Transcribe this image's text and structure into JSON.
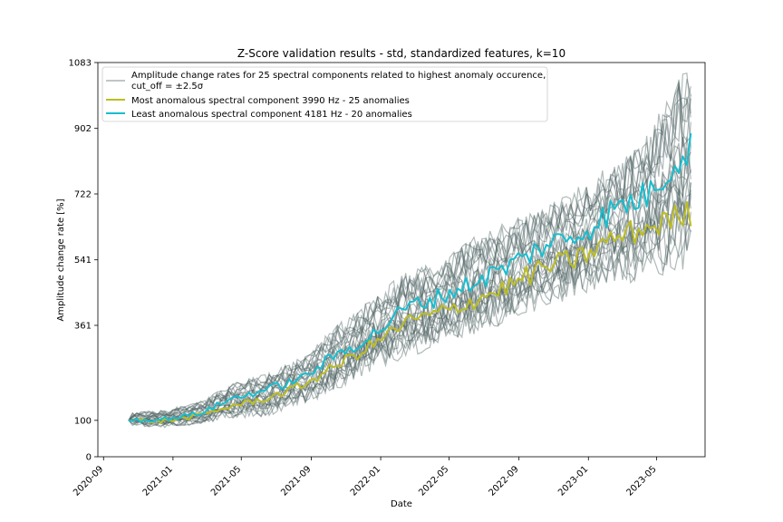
{
  "chart_data": {
    "type": "line",
    "title": "Z-Score validation results - std, standardized features, k=10",
    "xlabel": "Date",
    "ylabel": "Amplitude change rate [%]",
    "xlim": [
      "2020-08-22",
      "2023-07-25"
    ],
    "ylim": [
      0,
      1083
    ],
    "y_ticks": [
      0,
      100,
      361,
      541,
      722,
      902,
      1083
    ],
    "x_ticks": [
      "2020-09",
      "2021-01",
      "2021-05",
      "2021-09",
      "2022-01",
      "2022-05",
      "2022-09",
      "2023-01",
      "2023-05"
    ],
    "x_range": [
      "2020-10-15",
      "2023-06-30"
    ],
    "grid": false,
    "legend_position": "upper-left",
    "legend": [
      {
        "label_line1": "Amplitude change rates for 25 spectral components related to highest anomaly occurence,",
        "label_line2": "cut_off = ±2.5σ",
        "color": "#a9b3b3"
      },
      {
        "label": "Most anomalous spectral component 3990 Hz - 25 anomalies",
        "color": "#bcbd22"
      },
      {
        "label": "Least anomalous spectral component 4181 Hz - 20 anomalies",
        "color": "#17becf"
      }
    ],
    "series": [
      {
        "name": "Most anomalous spectral component 3990 Hz - 25 anomalies",
        "color": "#bcbd22",
        "anchors": [
          [
            "2020-10-15",
            100
          ],
          [
            "2020-12-15",
            98
          ],
          [
            "2021-02-15",
            112
          ],
          [
            "2021-04-15",
            140
          ],
          [
            "2021-06-15",
            160
          ],
          [
            "2021-08-15",
            195
          ],
          [
            "2021-10-15",
            250
          ],
          [
            "2021-12-15",
            305
          ],
          [
            "2022-02-15",
            370
          ],
          [
            "2022-04-15",
            395
          ],
          [
            "2022-06-15",
            430
          ],
          [
            "2022-08-15",
            470
          ],
          [
            "2022-10-15",
            520
          ],
          [
            "2022-12-15",
            545
          ],
          [
            "2023-02-15",
            600
          ],
          [
            "2023-04-15",
            630
          ],
          [
            "2023-06-30",
            670
          ]
        ]
      },
      {
        "name": "Least anomalous spectral component 4181 Hz - 20 anomalies",
        "color": "#17becf",
        "anchors": [
          [
            "2020-10-15",
            100
          ],
          [
            "2020-12-15",
            103
          ],
          [
            "2021-02-15",
            118
          ],
          [
            "2021-04-15",
            160
          ],
          [
            "2021-06-15",
            185
          ],
          [
            "2021-08-15",
            215
          ],
          [
            "2021-10-15",
            280
          ],
          [
            "2021-12-15",
            330
          ],
          [
            "2022-02-15",
            410
          ],
          [
            "2022-04-15",
            440
          ],
          [
            "2022-06-15",
            480
          ],
          [
            "2022-08-15",
            525
          ],
          [
            "2022-10-15",
            580
          ],
          [
            "2022-12-15",
            610
          ],
          [
            "2023-02-15",
            680
          ],
          [
            "2023-04-15",
            720
          ],
          [
            "2023-06-30",
            860
          ]
        ]
      }
    ],
    "background_series_count": 25,
    "background_color": "#4f6363",
    "background_envelope": [
      [
        "2020-10-15",
        90,
        115
      ],
      [
        "2020-12-15",
        85,
        120
      ],
      [
        "2021-02-15",
        95,
        140
      ],
      [
        "2021-04-15",
        115,
        185
      ],
      [
        "2021-06-15",
        125,
        210
      ],
      [
        "2021-08-15",
        155,
        250
      ],
      [
        "2021-10-15",
        200,
        330
      ],
      [
        "2021-12-15",
        255,
        400
      ],
      [
        "2022-02-15",
        300,
        470
      ],
      [
        "2022-04-15",
        330,
        500
      ],
      [
        "2022-06-15",
        365,
        560
      ],
      [
        "2022-08-15",
        400,
        600
      ],
      [
        "2022-10-15",
        440,
        640
      ],
      [
        "2022-12-15",
        470,
        690
      ],
      [
        "2023-02-15",
        510,
        750
      ],
      [
        "2023-04-15",
        530,
        820
      ],
      [
        "2023-06-30",
        590,
        1010
      ]
    ]
  }
}
